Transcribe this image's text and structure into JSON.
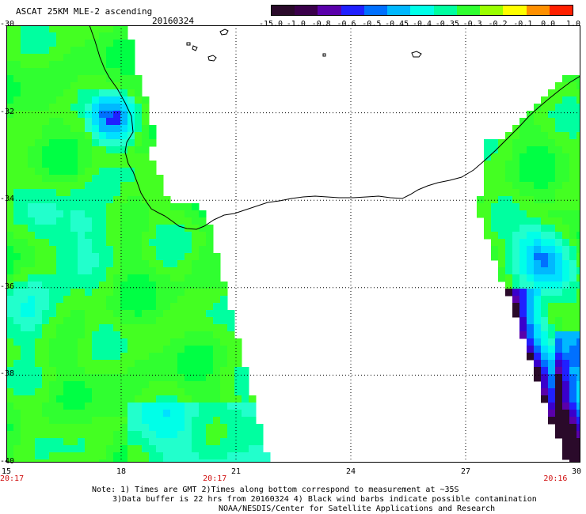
{
  "header": {
    "title": "ASCAT 25KM MLE-2 ascending",
    "date": "20160324"
  },
  "colorbar": {
    "labels": [
      "-15.0",
      "-1.0",
      "-0.8",
      "-0.6",
      "-0.5",
      "-0.45",
      "-0.4",
      "-0.35",
      "-0.3",
      "-0.2",
      "-0.1",
      "0.0",
      "1.0"
    ],
    "colors": [
      "#2a0a2a",
      "#3a004a",
      "#5a00aa",
      "#2020ff",
      "#0070ff",
      "#00b8ff",
      "#00ffe8",
      "#00ffa0",
      "#30ff30",
      "#9aff00",
      "#ffff00",
      "#ff9000",
      "#ff2000"
    ]
  },
  "map": {
    "lat_labels": [
      "-30",
      "-32",
      "-34",
      "-36",
      "-38",
      "-40"
    ],
    "lon_labels": [
      "15",
      "18",
      "21",
      "24",
      "27",
      "30"
    ],
    "lat_values": [
      -30,
      -32,
      -34,
      -36,
      -38,
      -40
    ],
    "lon_values": [
      15,
      18,
      21,
      24,
      27,
      30
    ],
    "lat_range": [
      -40,
      -30
    ],
    "lon_range": [
      15,
      30
    ],
    "time_labels": [
      {
        "text": "20:17",
        "lon": 15
      },
      {
        "text": "20:17",
        "lon": 20.3
      },
      {
        "text": "20:16",
        "lon": 29.2
      }
    ]
  },
  "notes": {
    "line1": "Note: 1) Times are GMT 2)Times along bottom correspond to measurement at ~35S",
    "line2": "3)Data buffer is 22 hrs from 20160324 4) Black wind barbs indicate possible contamination",
    "line3": "NOAA/NESDIS/Center for Satellite Applications and Research"
  }
}
